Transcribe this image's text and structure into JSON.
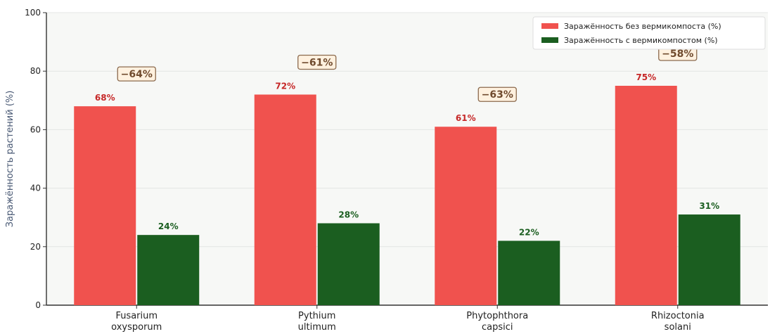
{
  "chart_data": {
    "type": "bar",
    "title": "",
    "xlabel": "",
    "ylabel": "Заражённость растений (%)",
    "ylim": [
      0,
      100
    ],
    "yticks": [
      0,
      20,
      40,
      60,
      80,
      100
    ],
    "grid": "horizontal",
    "legend_position": "top-right",
    "categories": [
      [
        "Fusarium",
        "oxysporum"
      ],
      [
        "Pythium",
        "ultimum"
      ],
      [
        "Phytophthora",
        "capsici"
      ],
      [
        "Rhizoctonia",
        "solani"
      ]
    ],
    "series": [
      {
        "name": "Заражённость без вермикомпоста (%)",
        "values": [
          68,
          72,
          61,
          75
        ],
        "labels": [
          "68%",
          "72%",
          "61%",
          "75%"
        ],
        "color": "#f0524e",
        "label_color": "#c62828"
      },
      {
        "name": "Заражённость с вермикомпостом (%)",
        "values": [
          24,
          28,
          22,
          31
        ],
        "labels": [
          "24%",
          "28%",
          "22%",
          "31%"
        ],
        "color": "#1b5e20",
        "label_color": "#1b5e20"
      }
    ],
    "annotations": [
      "−64%",
      "−61%",
      "−63%",
      "−58%"
    ],
    "colors": {
      "plot_background": "#f7f8f6",
      "grid": "#e4e6e4",
      "annotation_fill": "#fff1df",
      "annotation_border": "#8b6a4e",
      "annotation_text": "#6f4a2d"
    }
  }
}
